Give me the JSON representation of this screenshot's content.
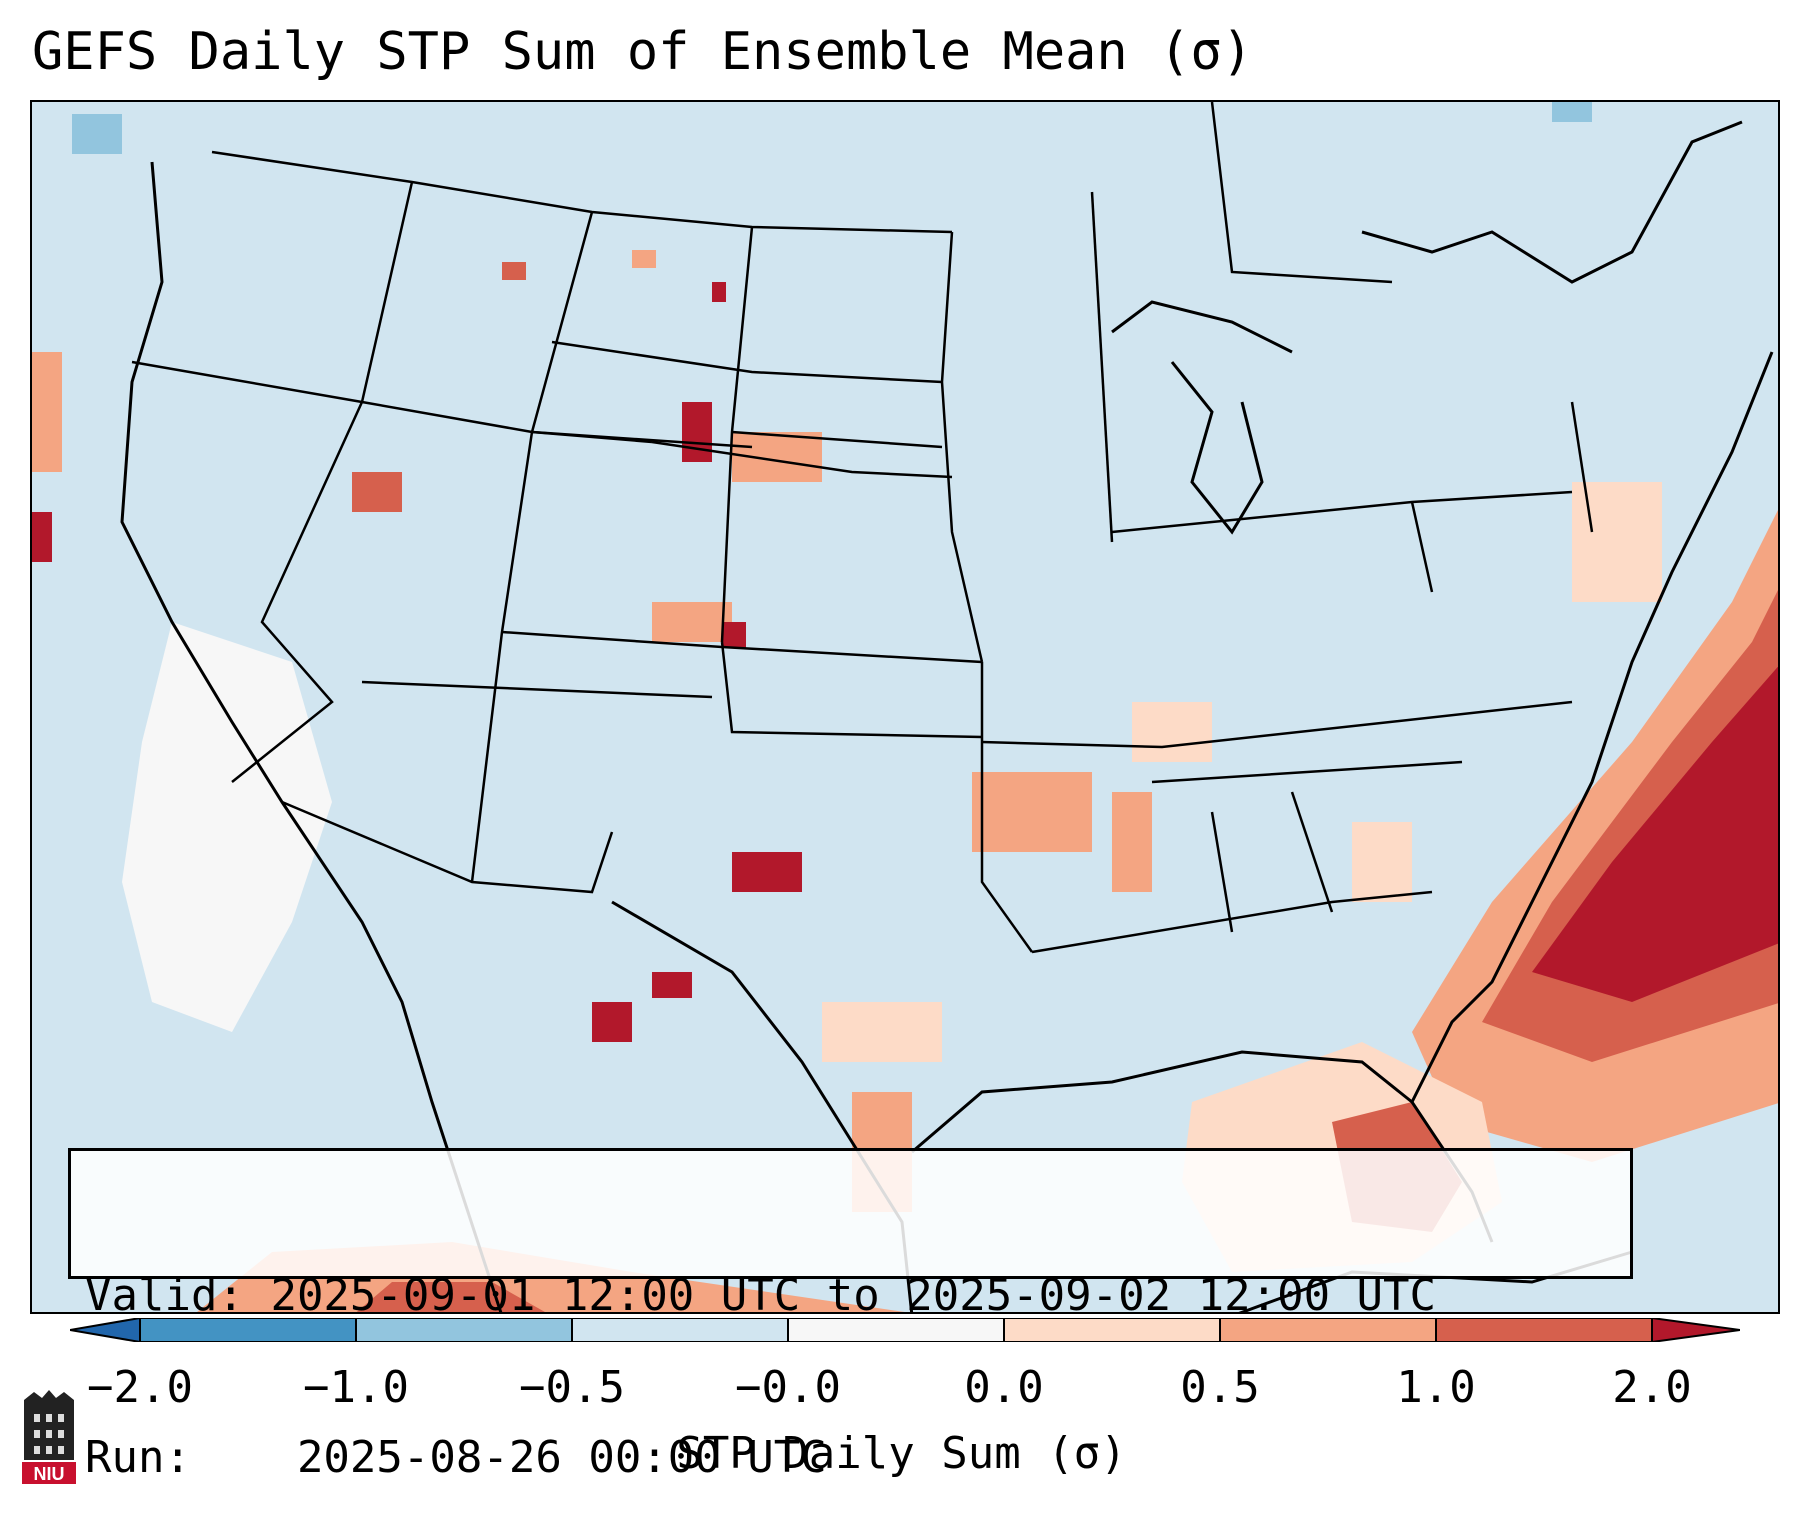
{
  "title": "GEFS Daily STP Sum of Ensemble Mean (σ)",
  "info": {
    "valid_label": "Valid:",
    "valid_value": "2025-09-01 12:00 UTC to 2025-09-02 12:00 UTC",
    "run_label": "Run:",
    "run_value": "2025-08-26 00:00 UTC"
  },
  "colorbar": {
    "label": "STP Daily Sum (σ)",
    "ticks": [
      "−2.0",
      "−1.0",
      "−0.5",
      "−0.0",
      "0.0",
      "0.5",
      "1.0",
      "2.0"
    ],
    "colors": [
      "#2166ac",
      "#4393c3",
      "#92c5de",
      "#d1e5f0",
      "#f7f7f7",
      "#fddbc7",
      "#f4a582",
      "#d6604d",
      "#b2182b"
    ]
  },
  "logo": {
    "text": "NIU",
    "icon": "niu-logo-icon"
  },
  "colors": {
    "ocean_background": "#d1e5f0",
    "strong_positive": "#b2182b",
    "positive": "#d6604d",
    "weak_positive": "#f4a582",
    "slight_positive": "#fddbc7",
    "neutral": "#f7f7f7",
    "slight_negative": "#92c5de"
  }
}
